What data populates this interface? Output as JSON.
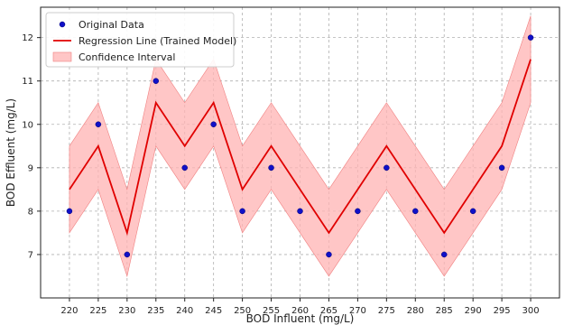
{
  "chart_data": {
    "type": "line",
    "title": "",
    "xlabel": "BOD Influent (mg/L)",
    "ylabel": "BOD Effluent (mg/L)",
    "x": [
      220,
      225,
      230,
      235,
      240,
      245,
      250,
      255,
      260,
      265,
      270,
      275,
      280,
      285,
      290,
      295,
      300
    ],
    "xlim": [
      215,
      305
    ],
    "ylim": [
      6.0,
      12.7
    ],
    "xticks": [
      220,
      225,
      230,
      235,
      240,
      245,
      250,
      255,
      260,
      265,
      270,
      275,
      280,
      285,
      290,
      295,
      300
    ],
    "yticks": [
      7,
      8,
      9,
      10,
      11,
      12
    ],
    "grid": true,
    "legend_position": "top-left",
    "series": [
      {
        "name": "Original Data",
        "kind": "scatter",
        "color": "#1010c8",
        "values": [
          8,
          10,
          7,
          11,
          9,
          10,
          8,
          9,
          8,
          7,
          8,
          9,
          8,
          7,
          8,
          9,
          12
        ]
      },
      {
        "name": "Regression Line (Trained Model)",
        "kind": "line",
        "color": "#e00000",
        "values": [
          8.5,
          9.5,
          7.5,
          10.5,
          9.5,
          10.5,
          8.5,
          9.5,
          8.5,
          7.5,
          8.5,
          9.5,
          8.5,
          7.5,
          8.5,
          9.5,
          11.5
        ]
      },
      {
        "name": "Confidence Interval",
        "kind": "band",
        "color": "#ffb3b3",
        "lower": [
          7.5,
          8.5,
          6.5,
          9.5,
          8.5,
          9.5,
          7.5,
          8.5,
          7.5,
          6.5,
          7.5,
          8.5,
          7.5,
          6.5,
          7.5,
          8.5,
          10.5
        ],
        "upper": [
          9.5,
          10.5,
          8.5,
          11.5,
          10.5,
          11.5,
          9.5,
          10.5,
          9.5,
          8.5,
          9.5,
          10.5,
          9.5,
          8.5,
          9.5,
          10.5,
          12.5
        ]
      }
    ]
  }
}
